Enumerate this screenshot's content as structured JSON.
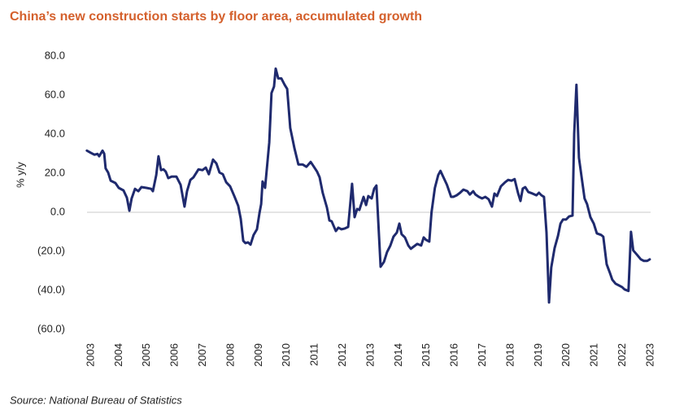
{
  "chart_data": {
    "type": "line",
    "title": "China’s new construction starts by floor area, accumulated growth",
    "ylabel": "% y/y",
    "source": "Source: National Bureau of Statistics",
    "color": "#1f2a6e",
    "zero_line": true,
    "xlim": [
      2002.8,
      2023.1
    ],
    "xticks": [
      2003,
      2004,
      2005,
      2006,
      2007,
      2008,
      2009,
      2010,
      2011,
      2012,
      2013,
      2014,
      2015,
      2016,
      2017,
      2018,
      2019,
      2020,
      2021,
      2022,
      2023
    ],
    "ylim": [
      -60,
      80
    ],
    "yticks": [
      {
        "value": 80,
        "label": "80.0"
      },
      {
        "value": 60,
        "label": "60.0"
      },
      {
        "value": 40,
        "label": "40.0"
      },
      {
        "value": 20,
        "label": "20.0"
      },
      {
        "value": 0,
        "label": "0.0"
      },
      {
        "value": -20,
        "label": "(20.0)"
      },
      {
        "value": -40,
        "label": "(40.0)"
      },
      {
        "value": -60,
        "label": "(60.0)"
      }
    ],
    "x": [
      2002.85,
      2003.0,
      2003.12,
      2003.23,
      2003.29,
      2003.41,
      2003.47,
      2003.52,
      2003.61,
      2003.7,
      2003.87,
      2003.99,
      2004.16,
      2004.28,
      2004.37,
      2004.45,
      2004.57,
      2004.69,
      2004.8,
      2004.98,
      2005.15,
      2005.21,
      2005.33,
      2005.41,
      2005.5,
      2005.59,
      2005.67,
      2005.76,
      2005.88,
      2006.05,
      2006.2,
      2006.34,
      2006.43,
      2006.55,
      2006.66,
      2006.84,
      2006.98,
      2007.1,
      2007.21,
      2007.36,
      2007.48,
      2007.59,
      2007.71,
      2007.83,
      2007.97,
      2008.12,
      2008.26,
      2008.35,
      2008.44,
      2008.52,
      2008.61,
      2008.7,
      2008.81,
      2008.93,
      2009.02,
      2009.08,
      2009.13,
      2009.22,
      2009.37,
      2009.45,
      2009.54,
      2009.6,
      2009.69,
      2009.8,
      2009.92,
      2010.01,
      2010.12,
      2010.27,
      2010.41,
      2010.56,
      2010.7,
      2010.85,
      2010.93,
      2011.08,
      2011.17,
      2011.28,
      2011.43,
      2011.52,
      2011.6,
      2011.75,
      2011.84,
      2011.95,
      2012.07,
      2012.19,
      2012.33,
      2012.42,
      2012.51,
      2012.59,
      2012.74,
      2012.83,
      2012.91,
      2013.03,
      2013.12,
      2013.2,
      2013.35,
      2013.47,
      2013.58,
      2013.7,
      2013.81,
      2013.93,
      2014.02,
      2014.1,
      2014.22,
      2014.34,
      2014.43,
      2014.54,
      2014.66,
      2014.8,
      2014.89,
      2014.97,
      2015.09,
      2015.17,
      2015.29,
      2015.41,
      2015.49,
      2015.61,
      2015.72,
      2015.87,
      2015.95,
      2016.07,
      2016.19,
      2016.31,
      2016.45,
      2016.54,
      2016.66,
      2016.74,
      2016.86,
      2016.98,
      2017.09,
      2017.21,
      2017.33,
      2017.42,
      2017.51,
      2017.65,
      2017.8,
      2017.91,
      2018.03,
      2018.14,
      2018.26,
      2018.35,
      2018.43,
      2018.52,
      2018.63,
      2018.78,
      2018.92,
      2019.01,
      2019.1,
      2019.19,
      2019.28,
      2019.37,
      2019.45,
      2019.57,
      2019.69,
      2019.78,
      2019.87,
      2019.98,
      2020.09,
      2020.21,
      2020.27,
      2020.35,
      2020.44,
      2020.56,
      2020.64,
      2020.73,
      2020.85,
      2020.97,
      2021.08,
      2021.23,
      2021.31,
      2021.43,
      2021.54,
      2021.63,
      2021.75,
      2021.86,
      2021.98,
      2022.07,
      2022.21,
      2022.3,
      2022.38,
      2022.53,
      2022.65,
      2022.76,
      2022.88,
      2022.97
    ],
    "values": [
      31.6,
      30.4,
      29.5,
      29.9,
      28.7,
      31.6,
      30,
      22.5,
      20.4,
      16.2,
      15,
      12.5,
      11.2,
      7.5,
      0.8,
      7.1,
      12,
      10.8,
      12.9,
      12.5,
      12,
      10.8,
      19.1,
      28.7,
      21.6,
      22,
      20.8,
      17.5,
      18.3,
      18.3,
      14.1,
      2.9,
      10.8,
      16.6,
      17.9,
      22,
      21.6,
      22.9,
      19.5,
      27,
      25,
      20.4,
      19.5,
      15.4,
      13.3,
      8.3,
      3.3,
      -3.3,
      -14.6,
      -15.8,
      -15.4,
      -16.6,
      -11.6,
      -8.7,
      -0.4,
      4.2,
      15.8,
      12.5,
      35.8,
      61.1,
      64.4,
      73.6,
      68.6,
      68.6,
      65.3,
      63.2,
      43.2,
      32.8,
      24.5,
      24.5,
      23.3,
      25.8,
      24.1,
      20.8,
      17.9,
      10,
      2.5,
      -4.2,
      -4.6,
      -9.6,
      -7.9,
      -8.7,
      -8.3,
      -7.5,
      14.6,
      -2.5,
      1.7,
      1.2,
      7.9,
      3.7,
      8.3,
      7.1,
      12.1,
      13.7,
      -27.9,
      -25.4,
      -20.4,
      -17,
      -12.5,
      -10.4,
      -5.8,
      -11.2,
      -12.9,
      -17,
      -18.7,
      -17.5,
      -16.2,
      -17,
      -12.9,
      -14.1,
      -15,
      0,
      12.5,
      19.1,
      21.2,
      17.5,
      14.1,
      7.9,
      7.9,
      8.7,
      10,
      11.6,
      10.8,
      9.1,
      10.8,
      9.1,
      7.9,
      7.1,
      7.9,
      6.7,
      2.9,
      9.6,
      8.3,
      13.3,
      15.4,
      16.6,
      16.2,
      17,
      10,
      5.8,
      12.1,
      12.9,
      10.4,
      9.6,
      8.7,
      10,
      8.7,
      7.9,
      -10.4,
      -46.2,
      -28.3,
      -18.3,
      -12.1,
      -5.8,
      -3.7,
      -3.7,
      -2.1,
      -1.7,
      40.3,
      65.3,
      27.9,
      15.4,
      7.1,
      4.2,
      -2.5,
      -5.8,
      -10.8,
      -11.6,
      -12.5,
      -26.6,
      -30.8,
      -34.5,
      -36.6,
      -37.4,
      -38.3,
      -39.5,
      -40.3,
      -10,
      -19.5,
      -22,
      -24.1,
      -24.9,
      -24.9,
      -24.1
    ]
  }
}
